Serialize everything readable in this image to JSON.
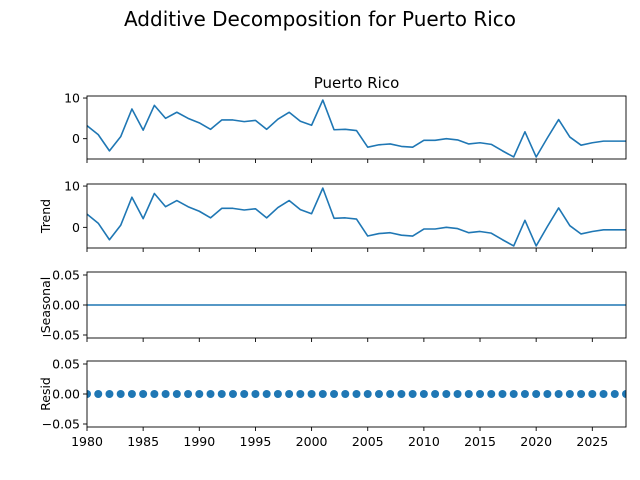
{
  "chart_data": {
    "type": "line",
    "suptitle": "Additive Decomposition for Puerto Rico",
    "x": [
      1980,
      1981,
      1982,
      1983,
      1984,
      1985,
      1986,
      1987,
      1988,
      1989,
      1990,
      1991,
      1992,
      1993,
      1994,
      1995,
      1996,
      1997,
      1998,
      1999,
      2000,
      2001,
      2002,
      2003,
      2004,
      2005,
      2006,
      2007,
      2008,
      2009,
      2010,
      2011,
      2012,
      2013,
      2014,
      2015,
      2016,
      2017,
      2018,
      2019,
      2020,
      2021,
      2022,
      2023,
      2024,
      2025,
      2026,
      2027,
      2028
    ],
    "xlim": [
      1980,
      2028
    ],
    "xticks": [
      1980,
      1985,
      1990,
      1995,
      2000,
      2005,
      2010,
      2015,
      2020,
      2025
    ],
    "line_color": "#1f77b4",
    "panels": [
      {
        "key": "observed",
        "title": "Puerto Rico",
        "ylabel": "",
        "kind": "line",
        "ylim": [
          -5,
          10.5
        ],
        "yticks": [
          0,
          10
        ],
        "values": [
          3.2,
          1.0,
          -3.0,
          0.5,
          7.3,
          2.1,
          8.2,
          5.0,
          6.5,
          5.0,
          3.9,
          2.3,
          4.6,
          4.6,
          4.2,
          4.5,
          2.3,
          4.8,
          6.5,
          4.3,
          3.3,
          9.5,
          2.2,
          2.3,
          2.0,
          -2.1,
          -1.5,
          -1.3,
          -1.9,
          -2.1,
          -0.4,
          -0.4,
          0.0,
          -0.3,
          -1.3,
          -1.0,
          -1.4,
          -3.0,
          -4.5,
          1.7,
          -4.5,
          0.2,
          4.7,
          0.4,
          -1.6,
          -1.0,
          -0.6,
          -0.6,
          -0.6
        ]
      },
      {
        "key": "trend",
        "title": "",
        "ylabel": "Trend",
        "kind": "line",
        "ylim": [
          -5,
          10.5
        ],
        "yticks": [
          0,
          10
        ],
        "values": [
          3.2,
          1.0,
          -3.0,
          0.5,
          7.3,
          2.1,
          8.2,
          5.0,
          6.5,
          5.0,
          3.9,
          2.3,
          4.6,
          4.6,
          4.2,
          4.5,
          2.3,
          4.8,
          6.5,
          4.3,
          3.3,
          9.5,
          2.2,
          2.3,
          2.0,
          -2.1,
          -1.5,
          -1.3,
          -1.9,
          -2.1,
          -0.4,
          -0.4,
          0.0,
          -0.3,
          -1.3,
          -1.0,
          -1.4,
          -3.0,
          -4.5,
          1.7,
          -4.5,
          0.2,
          4.7,
          0.4,
          -1.6,
          -1.0,
          -0.6,
          -0.6,
          -0.6
        ]
      },
      {
        "key": "seasonal",
        "title": "",
        "ylabel": "Seasonal",
        "kind": "line",
        "ylim": [
          -0.055,
          0.055
        ],
        "yticks": [
          -0.05,
          0.0,
          0.05
        ],
        "ytick_labels": [
          "−0.05",
          "0.00",
          "0.05"
        ],
        "values": [
          0,
          0,
          0,
          0,
          0,
          0,
          0,
          0,
          0,
          0,
          0,
          0,
          0,
          0,
          0,
          0,
          0,
          0,
          0,
          0,
          0,
          0,
          0,
          0,
          0,
          0,
          0,
          0,
          0,
          0,
          0,
          0,
          0,
          0,
          0,
          0,
          0,
          0,
          0,
          0,
          0,
          0,
          0,
          0,
          0,
          0,
          0,
          0,
          0
        ]
      },
      {
        "key": "resid",
        "title": "",
        "ylabel": "Resid",
        "kind": "scatter",
        "ylim": [
          -0.055,
          0.055
        ],
        "yticks": [
          -0.05,
          0.0,
          0.05
        ],
        "ytick_labels": [
          "−0.05",
          "0.00",
          "0.05"
        ],
        "values": [
          0,
          0,
          0,
          0,
          0,
          0,
          0,
          0,
          0,
          0,
          0,
          0,
          0,
          0,
          0,
          0,
          0,
          0,
          0,
          0,
          0,
          0,
          0,
          0,
          0,
          0,
          0,
          0,
          0,
          0,
          0,
          0,
          0,
          0,
          0,
          0,
          0,
          0,
          0,
          0,
          0,
          0,
          0,
          0,
          0,
          0,
          0,
          0,
          0
        ]
      }
    ]
  }
}
